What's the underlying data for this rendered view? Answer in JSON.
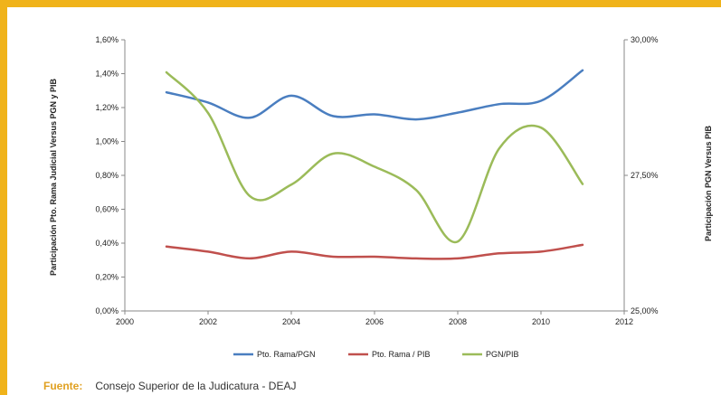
{
  "colors": {
    "frame": "#f0b31a",
    "rama_pgn": "#4a7ec0",
    "rama_pib": "#c0504d",
    "pgn_pib": "#9bbb59",
    "source_label": "#e0a020"
  },
  "source": {
    "label": "Fuente:",
    "text": "Consejo Superior de la Judicatura - DEAJ"
  },
  "chart_data": {
    "type": "line",
    "title": "",
    "xlabel": "",
    "ylabel": "Participación Pto. Rama Judicial Versus PGN y PIB",
    "y2label": "Participación PGN Versus PIB",
    "xlim": [
      2000,
      2012
    ],
    "ylim": [
      0,
      0.016
    ],
    "y2lim": [
      0.25,
      0.3
    ],
    "grid": false,
    "legend_position": "bottom",
    "x_ticks": [
      "2000",
      "2002",
      "2004",
      "2006",
      "2008",
      "2010",
      "2012"
    ],
    "x_tick_values": [
      2000,
      2002,
      2004,
      2006,
      2008,
      2010,
      2012
    ],
    "y_ticks": [
      "0,00%",
      "0,20%",
      "0,40%",
      "0,60%",
      "0,80%",
      "1,00%",
      "1,20%",
      "1,40%",
      "1,60%"
    ],
    "y_tick_values": [
      0,
      0.002,
      0.004,
      0.006,
      0.008,
      0.01,
      0.012,
      0.014,
      0.016
    ],
    "y2_ticks": [
      "25,00%",
      "27,50%",
      "30,00%"
    ],
    "y2_tick_values": [
      0.25,
      0.275,
      0.3
    ],
    "series": [
      {
        "name": "Pto. Rama/PGN",
        "axis": "left",
        "color": "#4a7ec0",
        "x": [
          2001,
          2002,
          2003,
          2004,
          2005,
          2006,
          2007,
          2008,
          2009,
          2010,
          2011
        ],
        "y": [
          0.0129,
          0.0123,
          0.0114,
          0.0127,
          0.0115,
          0.0116,
          0.0113,
          0.0117,
          0.0122,
          0.0124,
          0.0142
        ]
      },
      {
        "name": "Pto. Rama / PIB",
        "axis": "left",
        "color": "#c0504d",
        "x": [
          2001,
          2002,
          2003,
          2004,
          2005,
          2006,
          2007,
          2008,
          2009,
          2010,
          2011
        ],
        "y": [
          0.0038,
          0.0035,
          0.0031,
          0.0035,
          0.0032,
          0.0032,
          0.0031,
          0.0031,
          0.0034,
          0.0035,
          0.0039
        ]
      },
      {
        "name": "PGN/PIB",
        "axis": "right",
        "color": "#9bbb59",
        "x": [
          2001,
          2002,
          2003,
          2004,
          2005,
          2006,
          2007,
          2008,
          2009,
          2010,
          2011
        ],
        "y": [
          0.294,
          0.2865,
          0.2712,
          0.2733,
          0.279,
          0.2766,
          0.2723,
          0.2628,
          0.28,
          0.2838,
          0.2734
        ]
      }
    ]
  }
}
